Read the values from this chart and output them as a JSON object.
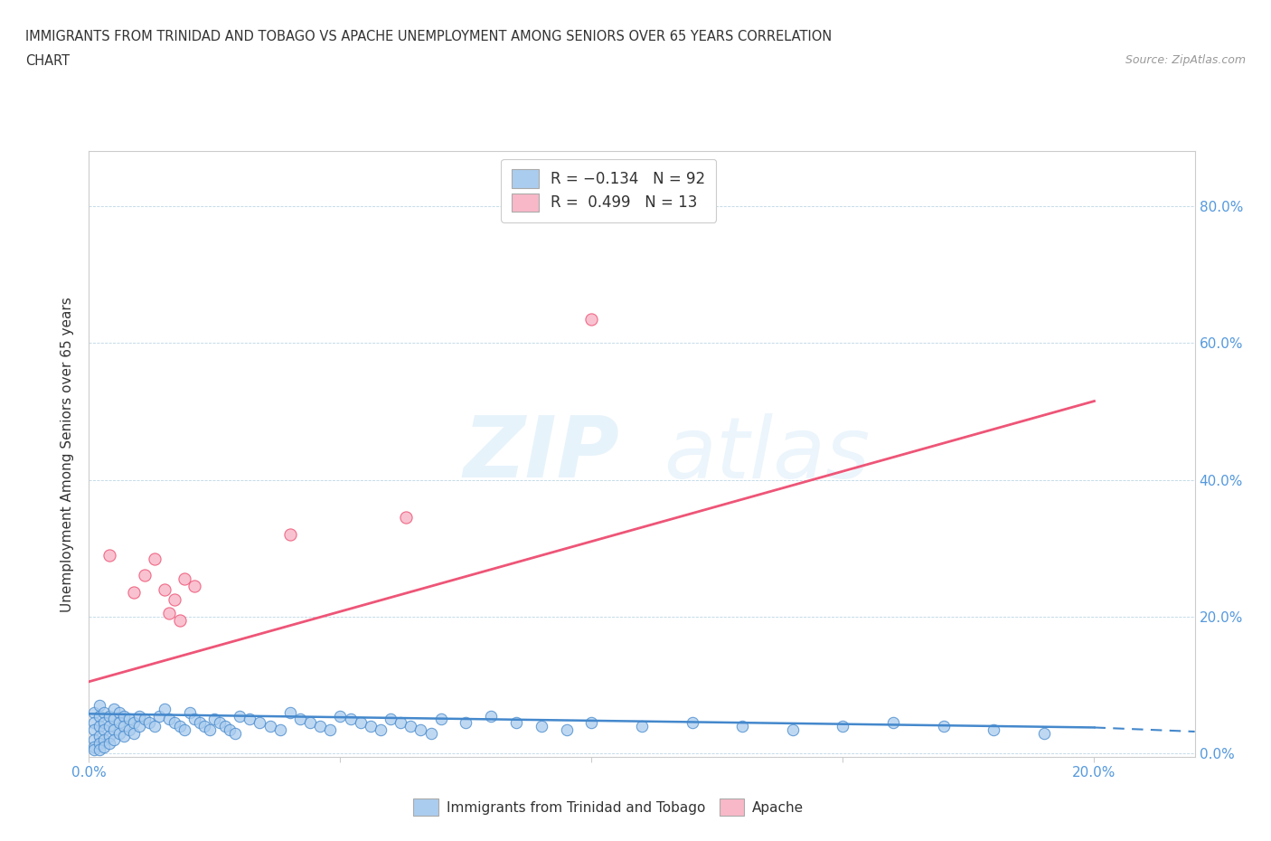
{
  "title_line1": "IMMIGRANTS FROM TRINIDAD AND TOBAGO VS APACHE UNEMPLOYMENT AMONG SENIORS OVER 65 YEARS CORRELATION",
  "title_line2": "CHART",
  "source_text": "Source: ZipAtlas.com",
  "ylabel": "Unemployment Among Seniors over 65 years",
  "xlim": [
    0.0,
    0.22
  ],
  "ylim": [
    -0.005,
    0.88
  ],
  "yticks": [
    0.0,
    0.2,
    0.4,
    0.6,
    0.8
  ],
  "ytick_labels": [
    "0.0%",
    "20.0%",
    "40.0%",
    "60.0%",
    "80.0%"
  ],
  "xticks": [
    0.0,
    0.05,
    0.1,
    0.15,
    0.2
  ],
  "xtick_labels": [
    "0.0%",
    "",
    "",
    "",
    "20.0%"
  ],
  "blue_color": "#aaccee",
  "pink_color": "#f8b8c8",
  "blue_line_color": "#4488cc",
  "pink_line_color": "#ee5577",
  "watermark_zip": "ZIP",
  "watermark_atlas": "atlas",
  "blue_scatter": [
    [
      0.001,
      0.06
    ],
    [
      0.001,
      0.045
    ],
    [
      0.001,
      0.035
    ],
    [
      0.001,
      0.02
    ],
    [
      0.001,
      0.01
    ],
    [
      0.001,
      0.005
    ],
    [
      0.002,
      0.07
    ],
    [
      0.002,
      0.055
    ],
    [
      0.002,
      0.04
    ],
    [
      0.002,
      0.025
    ],
    [
      0.002,
      0.015
    ],
    [
      0.002,
      0.005
    ],
    [
      0.003,
      0.06
    ],
    [
      0.003,
      0.045
    ],
    [
      0.003,
      0.035
    ],
    [
      0.003,
      0.02
    ],
    [
      0.003,
      0.01
    ],
    [
      0.004,
      0.055
    ],
    [
      0.004,
      0.04
    ],
    [
      0.004,
      0.025
    ],
    [
      0.004,
      0.015
    ],
    [
      0.005,
      0.065
    ],
    [
      0.005,
      0.05
    ],
    [
      0.005,
      0.035
    ],
    [
      0.005,
      0.02
    ],
    [
      0.006,
      0.06
    ],
    [
      0.006,
      0.045
    ],
    [
      0.006,
      0.03
    ],
    [
      0.007,
      0.055
    ],
    [
      0.007,
      0.04
    ],
    [
      0.007,
      0.025
    ],
    [
      0.008,
      0.05
    ],
    [
      0.008,
      0.035
    ],
    [
      0.009,
      0.045
    ],
    [
      0.009,
      0.03
    ],
    [
      0.01,
      0.055
    ],
    [
      0.01,
      0.04
    ],
    [
      0.011,
      0.05
    ],
    [
      0.012,
      0.045
    ],
    [
      0.013,
      0.04
    ],
    [
      0.014,
      0.055
    ],
    [
      0.015,
      0.065
    ],
    [
      0.016,
      0.05
    ],
    [
      0.017,
      0.045
    ],
    [
      0.018,
      0.04
    ],
    [
      0.019,
      0.035
    ],
    [
      0.02,
      0.06
    ],
    [
      0.021,
      0.05
    ],
    [
      0.022,
      0.045
    ],
    [
      0.023,
      0.04
    ],
    [
      0.024,
      0.035
    ],
    [
      0.025,
      0.05
    ],
    [
      0.026,
      0.045
    ],
    [
      0.027,
      0.04
    ],
    [
      0.028,
      0.035
    ],
    [
      0.029,
      0.03
    ],
    [
      0.03,
      0.055
    ],
    [
      0.032,
      0.05
    ],
    [
      0.034,
      0.045
    ],
    [
      0.036,
      0.04
    ],
    [
      0.038,
      0.035
    ],
    [
      0.04,
      0.06
    ],
    [
      0.042,
      0.05
    ],
    [
      0.044,
      0.045
    ],
    [
      0.046,
      0.04
    ],
    [
      0.048,
      0.035
    ],
    [
      0.05,
      0.055
    ],
    [
      0.052,
      0.05
    ],
    [
      0.054,
      0.045
    ],
    [
      0.056,
      0.04
    ],
    [
      0.058,
      0.035
    ],
    [
      0.06,
      0.05
    ],
    [
      0.062,
      0.045
    ],
    [
      0.064,
      0.04
    ],
    [
      0.066,
      0.035
    ],
    [
      0.068,
      0.03
    ],
    [
      0.07,
      0.05
    ],
    [
      0.075,
      0.045
    ],
    [
      0.08,
      0.055
    ],
    [
      0.085,
      0.045
    ],
    [
      0.09,
      0.04
    ],
    [
      0.095,
      0.035
    ],
    [
      0.1,
      0.045
    ],
    [
      0.11,
      0.04
    ],
    [
      0.12,
      0.045
    ],
    [
      0.13,
      0.04
    ],
    [
      0.14,
      0.035
    ],
    [
      0.15,
      0.04
    ],
    [
      0.16,
      0.045
    ],
    [
      0.17,
      0.04
    ],
    [
      0.18,
      0.035
    ],
    [
      0.19,
      0.03
    ]
  ],
  "pink_scatter": [
    [
      0.004,
      0.29
    ],
    [
      0.009,
      0.235
    ],
    [
      0.011,
      0.26
    ],
    [
      0.013,
      0.285
    ],
    [
      0.015,
      0.24
    ],
    [
      0.016,
      0.205
    ],
    [
      0.017,
      0.225
    ],
    [
      0.018,
      0.195
    ],
    [
      0.019,
      0.255
    ],
    [
      0.021,
      0.245
    ],
    [
      0.04,
      0.32
    ],
    [
      0.063,
      0.345
    ],
    [
      0.1,
      0.635
    ]
  ],
  "blue_trendline": [
    [
      0.0,
      0.058
    ],
    [
      0.2,
      0.038
    ]
  ],
  "pink_trendline": [
    [
      0.0,
      0.105
    ],
    [
      0.2,
      0.515
    ]
  ]
}
